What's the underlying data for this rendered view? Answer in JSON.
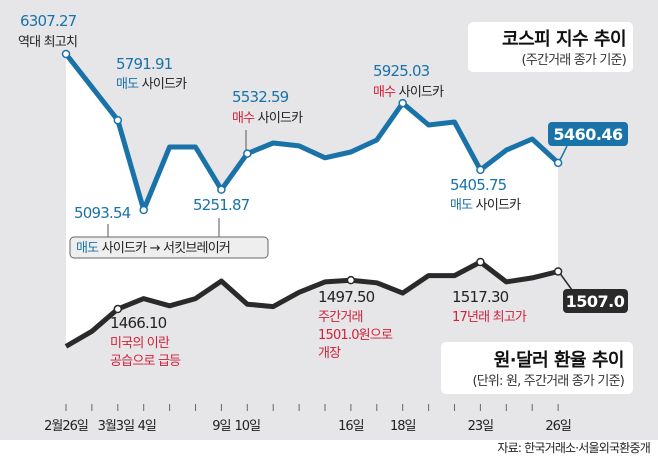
{
  "colors": {
    "kospi": "#1a73a8",
    "fx": "#2a2a2a",
    "red": "#d0223a",
    "background": "#e6e6e8",
    "plot": "#ffffff"
  },
  "chart_data": [
    {
      "type": "line",
      "title": "코스피 지수 추이",
      "subtitle": "(주간거래 종가 기준)",
      "x": [
        "2/26",
        "2/27",
        "3/3",
        "3/4",
        "3/5",
        "3/6",
        "3/9",
        "3/10",
        "3/11",
        "3/12",
        "3/13",
        "3/16",
        "3/17",
        "3/18",
        "3/19",
        "3/20",
        "3/23",
        "3/24",
        "3/25",
        "3/26"
      ],
      "values": [
        6307.27,
        6050,
        5791.91,
        5093.54,
        5584,
        5584,
        5251.87,
        5532.59,
        5615,
        5592,
        5500,
        5545,
        5638,
        5925.03,
        5755,
        5778,
        5405.75,
        5560,
        5646,
        5460.46
      ],
      "annotations": [
        {
          "value": "6307.27",
          "note": "역대 최고치"
        },
        {
          "value": "5791.91",
          "note_colored": "매도",
          "note": " 사이드카"
        },
        {
          "value": "5093.54"
        },
        {
          "value": "5251.87"
        },
        {
          "value": "5532.59",
          "note_colored": "매수",
          "note": " 사이드카"
        },
        {
          "value": "5925.03",
          "note_colored": "매수",
          "note": " 사이드카"
        },
        {
          "value": "5405.75",
          "note_colored": "매도",
          "note": " 사이드카"
        },
        {
          "value": "5460.46"
        }
      ],
      "callout": {
        "colored": "매도",
        "text": " 사이드카 → 서킷브레이커"
      }
    },
    {
      "type": "line",
      "title": "원·달러 환율 추이",
      "subtitle": "(단위: 원, 주간거래 종가 기준)",
      "x": [
        "2/26",
        "2/27",
        "3/3",
        "3/4",
        "3/5",
        "3/6",
        "3/9",
        "3/10",
        "3/11",
        "3/12",
        "3/13",
        "3/16",
        "3/17",
        "3/18",
        "3/19",
        "3/20",
        "3/23",
        "3/24",
        "3/25",
        "3/26"
      ],
      "values": [
        1425.4,
        1441.8,
        1466.1,
        1477.4,
        1469.6,
        1477.4,
        1496.5,
        1471.3,
        1468.7,
        1484.3,
        1495.6,
        1497.5,
        1494.7,
        1483.4,
        1502.5,
        1502.5,
        1517.3,
        1495.6,
        1500.0,
        1507.0
      ],
      "annotations": [
        {
          "value": "1466.10",
          "lines": [
            "미국의 이란",
            "공습으로 급등"
          ]
        },
        {
          "value": "1497.50",
          "lines": [
            "주간거래",
            "1501.0원으로",
            "개장"
          ]
        },
        {
          "value": "1517.30",
          "lines": [
            "17년래 최고가"
          ]
        },
        {
          "value": "1507.0"
        }
      ]
    }
  ],
  "x_tick_labels": [
    "2월26일",
    "3월3일",
    "4일",
    "9일",
    "10일",
    "16일",
    "18일",
    "23일",
    "26일"
  ],
  "source": "자료: 한국거래소·서울외국환중개"
}
